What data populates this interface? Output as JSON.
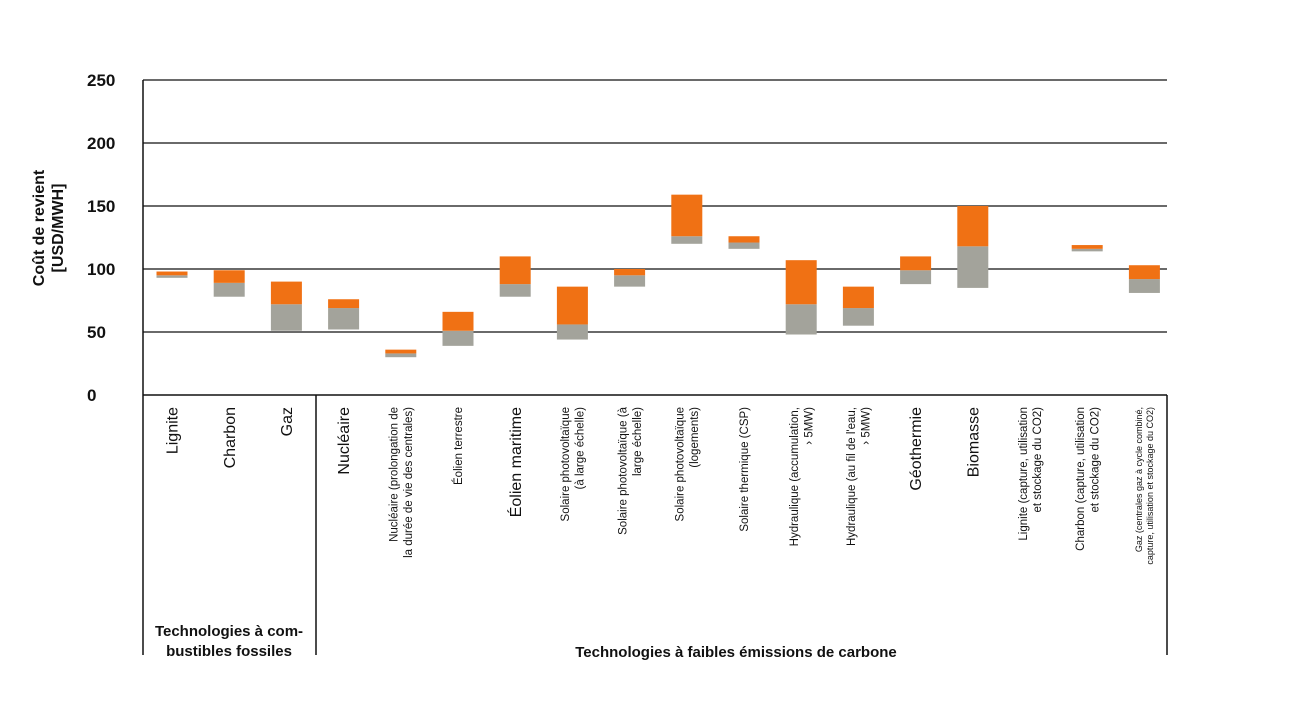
{
  "chart_data": {
    "type": "bar",
    "subtype": "floating-range",
    "ylabel": [
      "Coût de revient",
      "[USD/MWH]"
    ],
    "ylim": [
      0,
      250
    ],
    "yticks": [
      0,
      50,
      100,
      150,
      200,
      250
    ],
    "grid": true,
    "colors": {
      "lower_range": "#a3a39b",
      "upper_range": "#f07114"
    },
    "categories": [
      {
        "label": [
          "Lignite"
        ],
        "size": "large",
        "low": 93,
        "mid": 95,
        "high": 98
      },
      {
        "label": [
          "Charbon"
        ],
        "size": "large",
        "low": 78,
        "mid": 89,
        "high": 99
      },
      {
        "label": [
          "Gaz"
        ],
        "size": "large",
        "low": 51,
        "mid": 72,
        "high": 90
      },
      {
        "label": [
          "Nucléaire"
        ],
        "size": "large",
        "low": 52,
        "mid": 69,
        "high": 76
      },
      {
        "label": [
          "Nucléaire (prolongation de",
          "la durée de vie des centrales)"
        ],
        "size": "small",
        "low": 30,
        "mid": 33,
        "high": 36
      },
      {
        "label": [
          "Éolien terrestre"
        ],
        "size": "small",
        "low": 39,
        "mid": 51,
        "high": 66
      },
      {
        "label": [
          "Éolien maritime"
        ],
        "size": "large",
        "low": 78,
        "mid": 88,
        "high": 110
      },
      {
        "label": [
          "Solaire photovoltaïque",
          "(à large échelle)"
        ],
        "size": "small",
        "low": 44,
        "mid": 56,
        "high": 86
      },
      {
        "label": [
          "Solaire photovoltaïque (à",
          "large échelle)"
        ],
        "size": "small",
        "low": 86,
        "mid": 95,
        "high": 100
      },
      {
        "label": [
          "Solaire photovoltaïque",
          "(logements)"
        ],
        "size": "small",
        "low": 120,
        "mid": 126,
        "high": 159
      },
      {
        "label": [
          "Solaire thermique (CSP)"
        ],
        "size": "small",
        "low": 116,
        "mid": 121,
        "high": 126
      },
      {
        "label": [
          "Hydraulique (accumulation,",
          "› 5MW)"
        ],
        "size": "small",
        "low": 48,
        "mid": 72,
        "high": 107
      },
      {
        "label": [
          "Hydraulique (au fil de l'eau,",
          "› 5MW)"
        ],
        "size": "small",
        "low": 55,
        "mid": 69,
        "high": 86
      },
      {
        "label": [
          "Géothermie"
        ],
        "size": "large",
        "low": 88,
        "mid": 99,
        "high": 110
      },
      {
        "label": [
          "Biomasse"
        ],
        "size": "large",
        "low": 85,
        "mid": 118,
        "high": 150
      },
      {
        "label": [
          "Lignite (capture, utilisation",
          "et stockage du CO2)"
        ],
        "size": "small",
        "low": null,
        "mid": null,
        "high": null
      },
      {
        "label": [
          "Charbon (capture, utilisation",
          "et stockage du CO2)"
        ],
        "size": "small",
        "low": 114,
        "mid": 116,
        "high": 119
      },
      {
        "label": [
          "Gaz (centrales gaz à cycle combiné,",
          "capture, utilisation et stockage du CO2)"
        ],
        "size": "tiny",
        "low": 81,
        "mid": 92,
        "high": 103
      }
    ],
    "groups": [
      {
        "label": [
          "Technologies à com-",
          "bustibles fossiles"
        ],
        "count": 3
      },
      {
        "label": [
          "Technologies à faibles émissions de carbone"
        ],
        "count": 15
      }
    ]
  }
}
